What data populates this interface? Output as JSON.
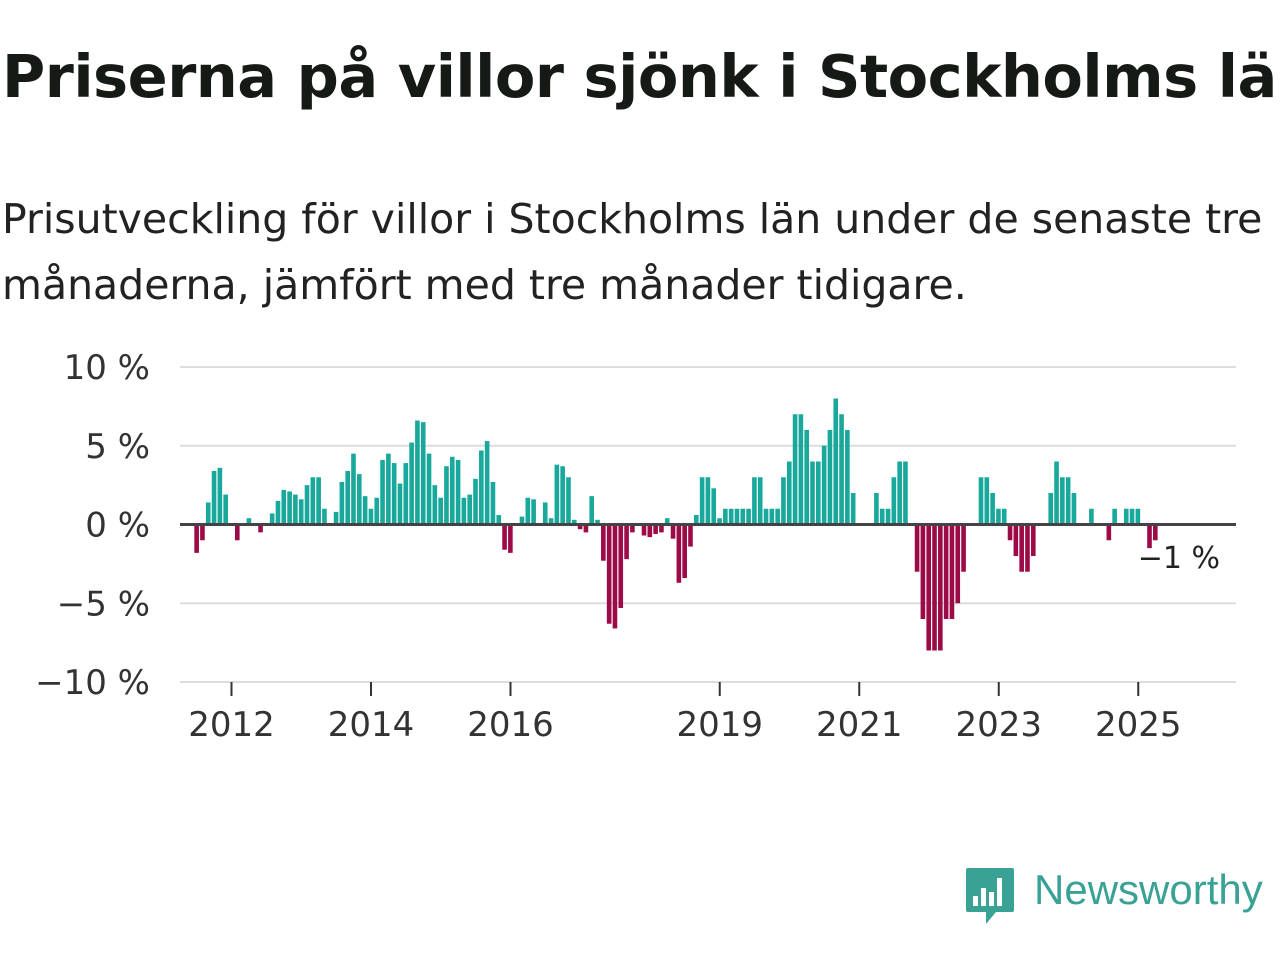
{
  "title": "Priserna på villor sjönk i Stockholms län",
  "subtitle": "Prisutveckling för villor i Stockholms län under de senaste tre månaderna, jämfört med tre månader tidigare.",
  "logo": {
    "text": "Newsworthy",
    "icon": "chart-bubble-icon"
  },
  "colors": {
    "positive": "#18a89c",
    "negative": "#9d0a48",
    "grid": "#dddddd",
    "zero_line": "#444444",
    "text": "#333333"
  },
  "chart_data": {
    "type": "bar",
    "title": "Priserna på villor sjönk i Stockholms län",
    "xlabel": "",
    "ylabel": "",
    "x_start": 2011.5,
    "x_step": 0.0833,
    "ylim": [
      -10,
      10
    ],
    "y_ticks": [
      10,
      5,
      0,
      -5,
      -10
    ],
    "y_tick_labels": [
      "10 %",
      "5 %",
      "0 %",
      "−5 %",
      "−10 %"
    ],
    "x_ticks": [
      2012,
      2014,
      2016,
      2019,
      2021,
      2023,
      2025
    ],
    "x_tick_labels": [
      "2012",
      "2014",
      "2016",
      "2019",
      "2021",
      "2023",
      "2025"
    ],
    "last_value_label": "−1 %",
    "values": [
      -1.8,
      -1,
      1.4,
      3.4,
      3.6,
      1.9,
      0,
      -1,
      0,
      0.4,
      0,
      -0.5,
      0,
      0.7,
      1.5,
      2.2,
      2.1,
      1.9,
      1.6,
      2.5,
      3,
      3,
      1,
      0,
      0.8,
      2.7,
      3.4,
      4.5,
      3.2,
      1.8,
      1,
      1.7,
      4.1,
      4.5,
      3.9,
      2.6,
      3.9,
      5.2,
      6.6,
      6.5,
      4.5,
      2.5,
      1.7,
      3.7,
      4.3,
      4.1,
      1.7,
      1.9,
      2.9,
      4.7,
      5.3,
      2.7,
      0.6,
      -1.6,
      -1.8,
      0,
      0.5,
      1.7,
      1.6,
      0,
      1.4,
      0.4,
      3.8,
      3.7,
      3,
      0.3,
      -0.3,
      -0.5,
      1.8,
      0.3,
      -2.3,
      -6.3,
      -6.6,
      -5.3,
      -2.2,
      -0.5,
      0,
      -0.7,
      -0.8,
      -0.6,
      -0.5,
      0.4,
      -0.9,
      -3.7,
      -3.4,
      -1.4,
      0.6,
      3,
      3,
      2.3,
      0.4,
      1,
      1,
      1,
      1,
      1,
      3,
      3,
      1,
      1,
      1,
      3,
      4,
      7,
      7,
      6,
      4,
      4,
      5,
      6,
      8,
      7,
      6,
      2,
      0,
      0,
      0,
      2,
      1,
      1,
      3,
      4,
      4,
      0,
      -3,
      -6,
      -8,
      -8,
      -8,
      -6,
      -6,
      -5,
      -3,
      0,
      0,
      3,
      3,
      2,
      1,
      1,
      -1,
      -2,
      -3,
      -3,
      -2,
      0,
      0,
      2,
      4,
      3,
      3,
      2,
      0,
      0,
      1,
      0,
      0,
      -1,
      1,
      0,
      1,
      1,
      1,
      0,
      -1.5,
      -1
    ]
  }
}
